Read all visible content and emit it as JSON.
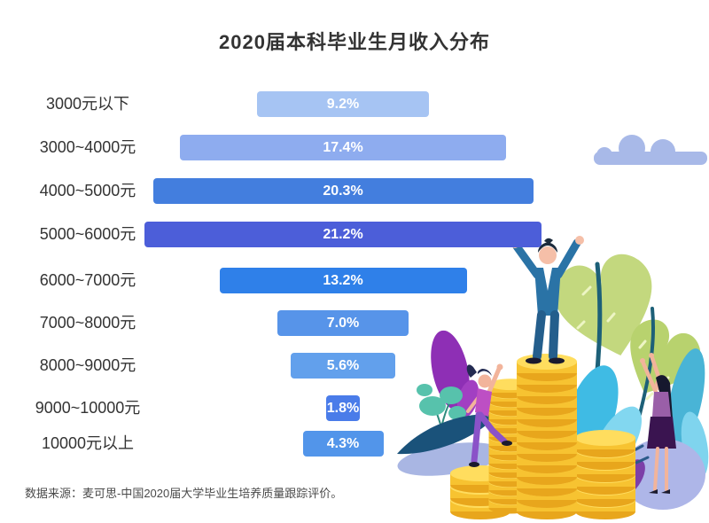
{
  "title": "2020届本科毕业生月收入分布",
  "source": "数据来源：麦可思-中国2020届大学毕业生培养质量跟踪评价。",
  "chart_data": {
    "type": "bar",
    "orientation": "horizontal-centered-funnel",
    "title": "2020届本科毕业生月收入分布",
    "categories": [
      "3000元以下",
      "3000~4000元",
      "4000~5000元",
      "5000~6000元",
      "6000~7000元",
      "7000~8000元",
      "8000~9000元",
      "9000~10000元",
      "10000元以上"
    ],
    "values": [
      9.2,
      17.4,
      20.3,
      21.2,
      13.2,
      7.0,
      5.6,
      1.8,
      4.3
    ],
    "value_labels": [
      "9.2%",
      "17.4%",
      "20.3%",
      "21.2%",
      "13.2%",
      "7.0%",
      "5.6%",
      "1.8%",
      "4.3%"
    ],
    "bar_colors": [
      "#A6C4F3",
      "#8EACEF",
      "#437EDE",
      "#4C5ED9",
      "#2F80E9",
      "#5794E9",
      "#62A0EC",
      "#4A7CE9",
      "#5295EA"
    ],
    "unit": "%",
    "xlim": [
      0,
      21.2
    ],
    "grid": false,
    "legend": false,
    "value_label_color": "#FFFFFF",
    "category_label_color": "#333333"
  },
  "illustration": {
    "description": "Flat-style decorative illustration: a man in a blue suit raising his arms on a tall stack of gold coins, a woman climbing a coin stack on the left, a woman reaching up on the right, surrounded by heart-shaped green leaves, purple and cyan leaves, a mint plant and a periwinkle cloud",
    "elements": [
      "cloud",
      "heart-leaves",
      "purple-leaf",
      "mint-plant",
      "dark-blue-leaf",
      "cyan-leaves",
      "periwinkle-blob",
      "coin-stacks",
      "man-arms-raised",
      "woman-climbing",
      "woman-reaching"
    ],
    "colors": {
      "cloud": "#A8B9E8",
      "coin_body": "#F7C331",
      "coin_top": "#FFDD5E",
      "coin_shadow": "#E8A61C",
      "leaf_green": "#C3D87E",
      "leaf_purple": "#8E2FB5",
      "leaf_cyan": "#3FBBE4",
      "leaf_dark_blue": "#1A527A",
      "mint": "#57C2AC",
      "suit_blue": "#2A73A6"
    }
  }
}
